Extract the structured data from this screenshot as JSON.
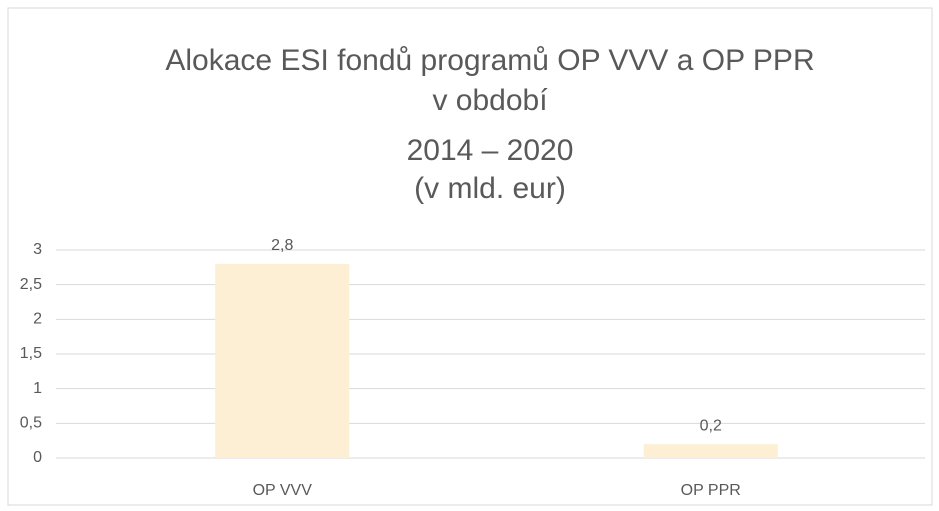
{
  "chart_data": {
    "type": "bar",
    "title": [
      "Alokace ESI fondů programů OP VVV a OP PPR",
      "v období",
      "2014 – 2020",
      "(v mld. eur)"
    ],
    "categories": [
      "OP VVV",
      "OP PPR"
    ],
    "values": [
      2.8,
      0.2
    ],
    "value_labels": [
      "2,8",
      "0,2"
    ],
    "color": "#fcefd4",
    "ylim": [
      0,
      3
    ],
    "yticks": [
      0,
      {
        "value": 0.5,
        "label": "0,5"
      },
      1,
      {
        "value": 1.5,
        "label": "1,5"
      },
      2,
      {
        "value": 2.5,
        "label": "2,5"
      },
      3
    ],
    "grid": true
  }
}
